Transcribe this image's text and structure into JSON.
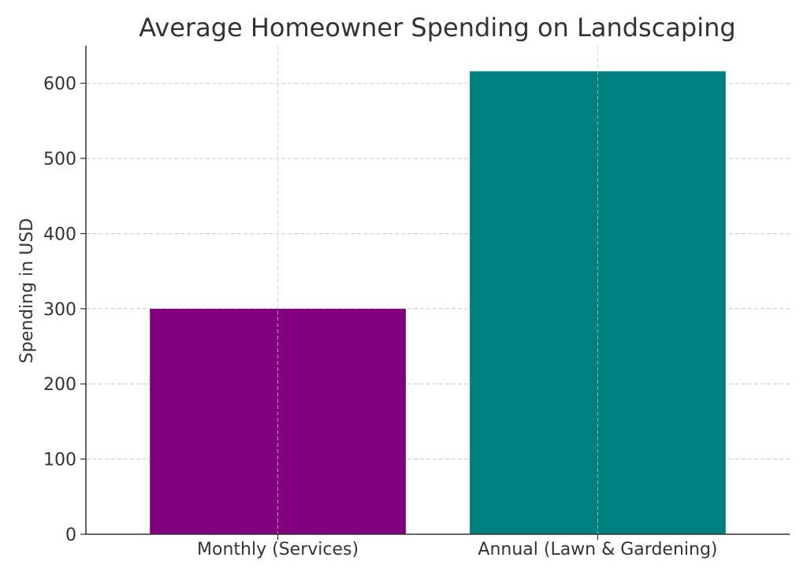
{
  "chart_data": {
    "type": "bar",
    "title": "Average Homeowner Spending on Landscaping",
    "xlabel": "",
    "ylabel": "Spending in USD",
    "categories": [
      "Monthly (Services)",
      "Annual (Lawn & Gardening)"
    ],
    "values": [
      300,
      616
    ],
    "colors": [
      "#800080",
      "#008080"
    ],
    "ylim": [
      0,
      650
    ],
    "yticks": [
      0,
      100,
      200,
      300,
      400,
      500,
      600
    ],
    "ytick_labels": [
      "0",
      "100",
      "200",
      "300",
      "400",
      "500",
      "600"
    ],
    "grid": true,
    "legend": null
  }
}
